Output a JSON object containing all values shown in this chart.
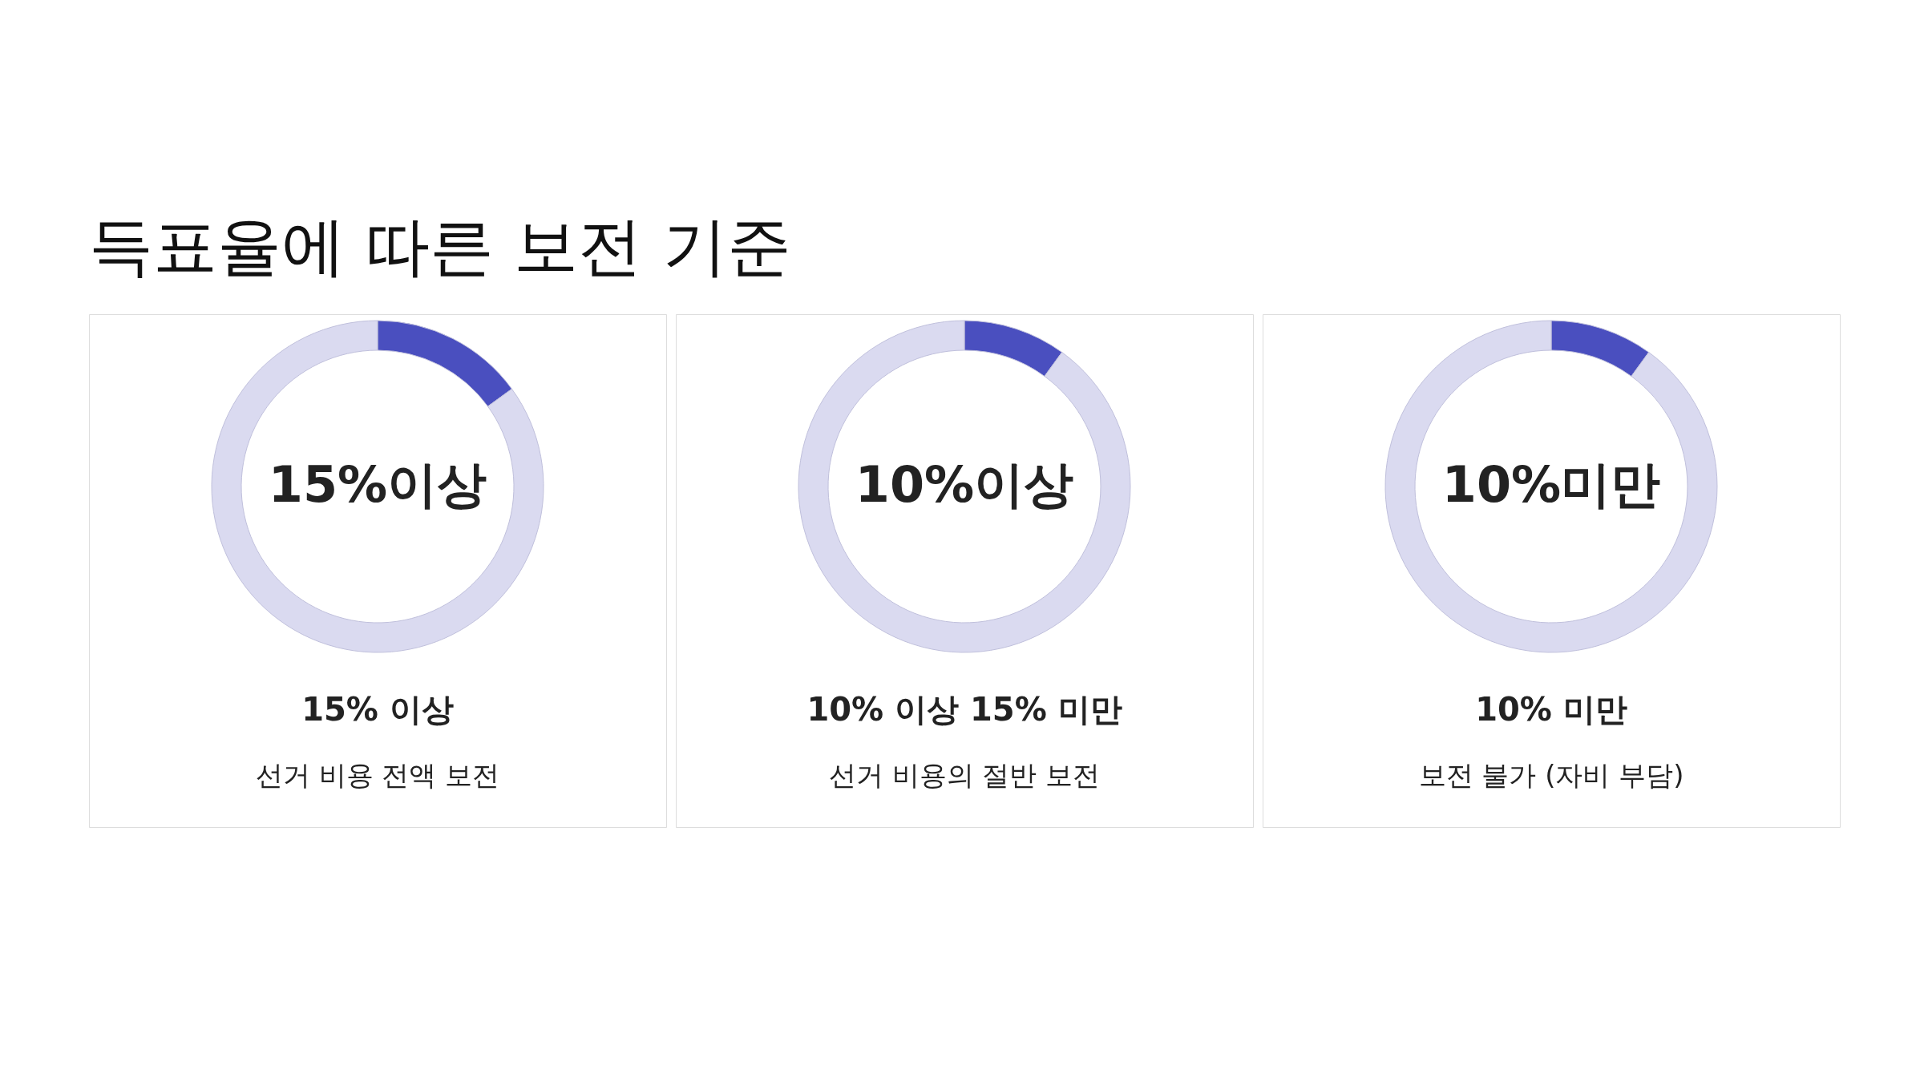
{
  "chart_data": [
    {
      "type": "donut",
      "title": "득표율에 따른 보전 기준",
      "categories": [
        null,
        null
      ],
      "values": [
        15,
        85
      ],
      "colors": [
        "#4a4fbf",
        "#dadaf0"
      ],
      "annotations": [
        "15%이상",
        "15% 이상",
        "선거 비용 전액 보전"
      ]
    },
    {
      "type": "donut",
      "categories": [
        null,
        null
      ],
      "values": [
        10,
        90
      ],
      "colors": [
        "#4a4fbf",
        "#dadaf0"
      ],
      "annotations": [
        "10%이상",
        "10% 이상 15% 미만",
        "선거 비용의 절반 보전"
      ]
    },
    {
      "type": "donut",
      "categories": [
        null,
        null
      ],
      "values": [
        10,
        90
      ],
      "colors": [
        "#4a4fbf",
        "#dadaf0"
      ],
      "annotations": [
        "10%미만",
        "10% 미만",
        "보전 불가 (자비 부담)"
      ]
    }
  ]
}
